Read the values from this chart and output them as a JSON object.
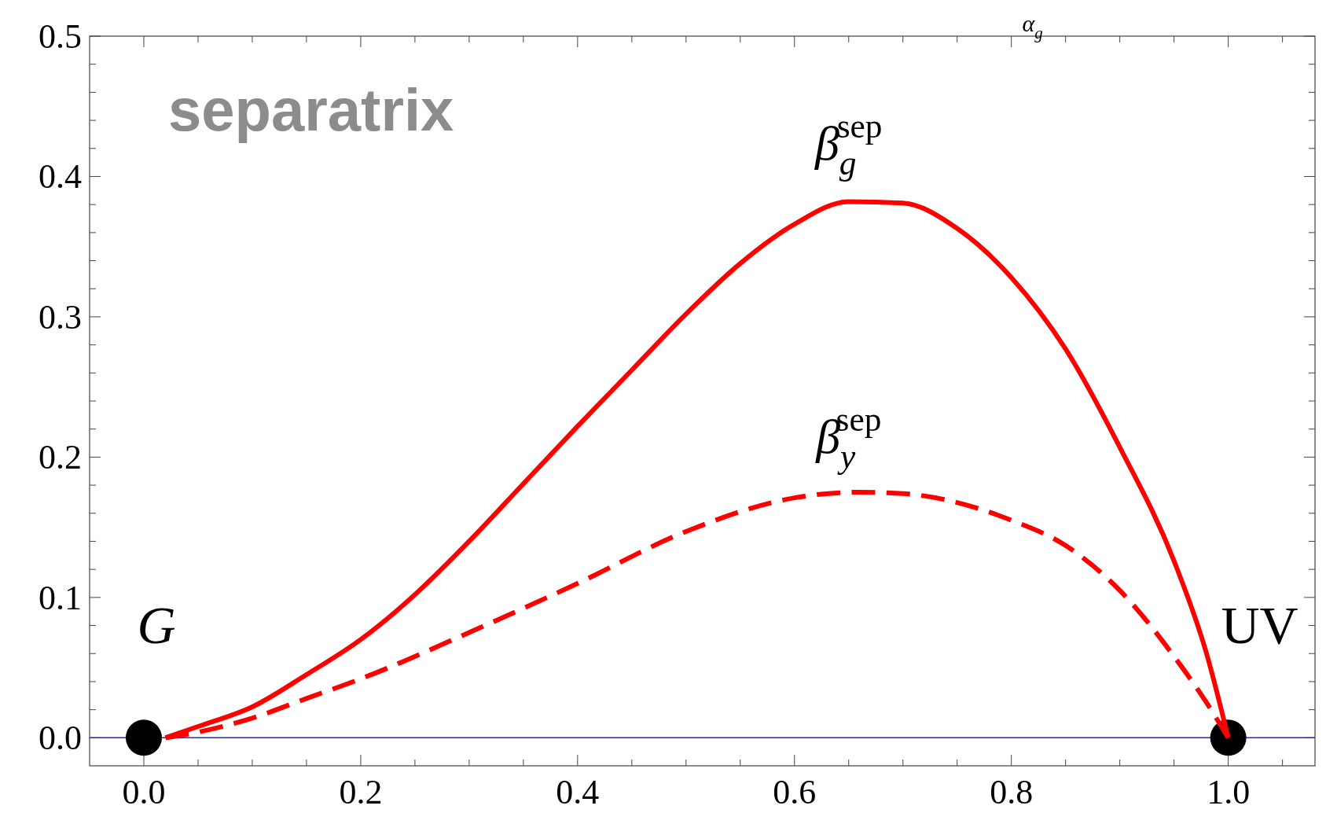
{
  "chart_data": {
    "type": "line",
    "xlabel": "α$_{g}$",
    "xlim": [
      -0.05,
      1.08
    ],
    "ylim": [
      -0.02,
      0.5
    ],
    "xticks": [
      {
        "value": 0,
        "label": "0.0"
      },
      {
        "value": 0.05,
        "label": null
      },
      {
        "value": 0.1,
        "label": null
      },
      {
        "value": 0.15,
        "label": null
      },
      {
        "value": 0.2,
        "label": "0.2"
      },
      {
        "value": 0.25,
        "label": null
      },
      {
        "value": 0.3,
        "label": null
      },
      {
        "value": 0.35,
        "label": null
      },
      {
        "value": 0.4,
        "label": "0.4"
      },
      {
        "value": 0.45,
        "label": null
      },
      {
        "value": 0.5,
        "label": null
      },
      {
        "value": 0.55,
        "label": null
      },
      {
        "value": 0.6,
        "label": "0.6"
      },
      {
        "value": 0.65,
        "label": null
      },
      {
        "value": 0.7,
        "label": null
      },
      {
        "value": 0.75,
        "label": null
      },
      {
        "value": 0.8,
        "label": "0.8"
      },
      {
        "value": 0.85,
        "label": null
      },
      {
        "value": 0.9,
        "label": null
      },
      {
        "value": 0.95,
        "label": null
      },
      {
        "value": 1,
        "label": "1.0"
      },
      {
        "value": 1.05,
        "label": null
      }
    ],
    "yticks": [
      {
        "value": 0,
        "label": "0.0"
      },
      {
        "value": 0.02,
        "label": null
      },
      {
        "value": 0.04,
        "label": null
      },
      {
        "value": 0.06,
        "label": null
      },
      {
        "value": 0.08,
        "label": null
      },
      {
        "value": 0.1,
        "label": "0.1"
      },
      {
        "value": 0.12,
        "label": null
      },
      {
        "value": 0.14,
        "label": null
      },
      {
        "value": 0.16,
        "label": null
      },
      {
        "value": 0.18,
        "label": null
      },
      {
        "value": 0.2,
        "label": "0.2"
      },
      {
        "value": 0.22,
        "label": null
      },
      {
        "value": 0.24,
        "label": null
      },
      {
        "value": 0.26,
        "label": null
      },
      {
        "value": 0.28,
        "label": null
      },
      {
        "value": 0.3,
        "label": "0.3"
      },
      {
        "value": 0.32,
        "label": null
      },
      {
        "value": 0.34,
        "label": null
      },
      {
        "value": 0.36,
        "label": null
      },
      {
        "value": 0.38,
        "label": null
      },
      {
        "value": 0.4,
        "label": "0.4"
      },
      {
        "value": 0.42,
        "label": null
      },
      {
        "value": 0.44,
        "label": null
      },
      {
        "value": 0.46,
        "label": null
      },
      {
        "value": 0.48,
        "label": null
      },
      {
        "value": 0.5,
        "label": "0.5"
      }
    ],
    "grid": false,
    "series": [
      {
        "type": "line",
        "color": "#ff0000",
        "line_style": "solid",
        "x": [
          0.02,
          0.05,
          0.1,
          0.15,
          0.2,
          0.25,
          0.3,
          0.35,
          0.4,
          0.45,
          0.5,
          0.55,
          0.6,
          0.65,
          0.7,
          0.75,
          0.8,
          0.85,
          0.9,
          0.95,
          0.98,
          1.0
        ],
        "values": [
          0.0,
          0.008,
          0.022,
          0.045,
          0.07,
          0.102,
          0.14,
          0.181,
          0.222,
          0.262,
          0.302,
          0.338,
          0.366,
          0.382,
          0.381,
          0.363,
          0.328,
          0.277,
          0.207,
          0.126,
          0.06,
          0.0
        ]
      },
      {
        "type": "line",
        "color": "#ff0000",
        "line_style": "dashed",
        "x": [
          0.02,
          0.05,
          0.1,
          0.15,
          0.2,
          0.3,
          0.4,
          0.5,
          0.6,
          0.66,
          0.7,
          0.8,
          0.85,
          0.9,
          0.95,
          0.98,
          1.0
        ],
        "values": [
          0.0,
          0.004,
          0.014,
          0.028,
          0.042,
          0.075,
          0.11,
          0.147,
          0.171,
          0.175,
          0.174,
          0.155,
          0.137,
          0.105,
          0.058,
          0.025,
          0.0
        ]
      },
      {
        "type": "scatter",
        "color": "#000000",
        "marker": "circle",
        "x": [
          0,
          1
        ],
        "values": [
          0,
          0
        ]
      }
    ],
    "ref_lines": [
      {
        "axis": "y",
        "value": 0,
        "color": "#2e2e8f"
      }
    ],
    "annotations": [
      "separatrix",
      {
        "text": "β$_{g}$$^{sep}$",
        "x": 0.65,
        "y": 0.384
      },
      {
        "text": "β$_{y}$$^{sep}$",
        "x": 0.65,
        "y": 0.175
      },
      {
        "text": "G",
        "x": 0,
        "y": 0
      },
      {
        "text": "UV",
        "x": 1,
        "y": 0
      }
    ]
  }
}
